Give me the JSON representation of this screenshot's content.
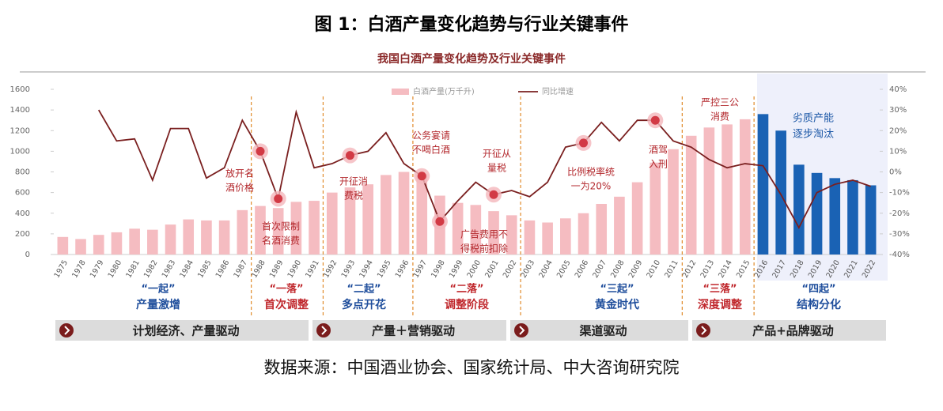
{
  "chart_data": {
    "type": "bar-line",
    "title": "图 1：白酒产量变化趋势与行业关键事件",
    "subtitle": "我国白酒产量变化趋势及行业关键事件",
    "source": "数据来源：中国酒业协会、国家统计局、中大咨询研究院",
    "categories": [
      "1975",
      "1978",
      "1979",
      "1980",
      "1981",
      "1982",
      "1983",
      "1984",
      "1985",
      "1986",
      "1987",
      "1988",
      "1989",
      "1990",
      "1991",
      "1992",
      "1993",
      "1994",
      "1995",
      "1996",
      "1997",
      "1998",
      "1999",
      "2000",
      "2001",
      "2002",
      "2003",
      "2004",
      "2005",
      "2006",
      "2007",
      "2008",
      "2009",
      "2010",
      "2011",
      "2012",
      "2013",
      "2014",
      "2015",
      "2016",
      "2017",
      "2018",
      "2019",
      "2020",
      "2021",
      "2022"
    ],
    "series": [
      {
        "name": "白酒产量(万千升)",
        "type": "bar",
        "color": "#f5bcc1",
        "colors": [
          "#f5bcc1",
          "#f5bcc1",
          "#f5bcc1",
          "#f5bcc1",
          "#f5bcc1",
          "#f5bcc1",
          "#f5bcc1",
          "#f5bcc1",
          "#f5bcc1",
          "#f5bcc1",
          "#f5bcc1",
          "#f5bcc1",
          "#f5bcc1",
          "#f5bcc1",
          "#f5bcc1",
          "#f5bcc1",
          "#f5bcc1",
          "#f5bcc1",
          "#f5bcc1",
          "#f5bcc1",
          "#f5bcc1",
          "#f5bcc1",
          "#f5bcc1",
          "#f5bcc1",
          "#f5bcc1",
          "#f5bcc1",
          "#f5bcc1",
          "#f5bcc1",
          "#f5bcc1",
          "#f5bcc1",
          "#f5bcc1",
          "#f5bcc1",
          "#f5bcc1",
          "#f5bcc1",
          "#f5bcc1",
          "#f5bcc1",
          "#f5bcc1",
          "#f5bcc1",
          "#f5bcc1",
          "#1a62b4",
          "#1a62b4",
          "#1a62b4",
          "#1a62b4",
          "#1a62b4",
          "#1a62b4",
          "#1a62b4"
        ],
        "values": [
          170,
          150,
          190,
          215,
          250,
          240,
          290,
          340,
          330,
          330,
          430,
          470,
          450,
          510,
          520,
          600,
          650,
          680,
          770,
          800,
          780,
          570,
          500,
          480,
          420,
          380,
          330,
          310,
          350,
          400,
          490,
          560,
          700,
          890,
          1020,
          1150,
          1230,
          1260,
          1310,
          1360,
          1200,
          870,
          790,
          740,
          720,
          670
        ]
      },
      {
        "name": "同比增速",
        "type": "line",
        "axis": "y2",
        "color": "#7a1f1f",
        "values": [
          null,
          null,
          30,
          15,
          16,
          -4,
          21,
          21,
          -3,
          2,
          25,
          10,
          -13,
          29,
          2,
          4,
          8,
          10,
          19,
          4,
          -2,
          -24,
          -14,
          -5,
          -11,
          -9,
          -12,
          -5,
          12,
          14,
          24,
          15,
          25,
          25,
          15,
          12,
          6,
          2,
          4,
          3,
          -11,
          -27,
          -10,
          -6,
          -4,
          -7
        ]
      }
    ],
    "ylim": [
      0,
      1600
    ],
    "yticks": [
      0,
      200,
      400,
      600,
      800,
      1000,
      1200,
      1400,
      1600
    ],
    "y2lim": [
      -40,
      40
    ],
    "y2ticks": [
      {
        "value": -40,
        "label": "-40%"
      },
      {
        "value": -30,
        "label": "-30%"
      },
      {
        "value": -20,
        "label": "-20%"
      },
      {
        "value": -10,
        "label": "-10%"
      },
      {
        "value": 0,
        "label": "0%"
      },
      {
        "value": 10,
        "label": "10%"
      },
      {
        "value": 20,
        "label": "20%"
      },
      {
        "value": 30,
        "label": "30%"
      },
      {
        "value": 40,
        "label": "40%"
      }
    ],
    "events": [
      {
        "lines": [
          "放开名",
          "酒价格"
        ]
      },
      {
        "lines": [
          "首次限制",
          "名酒消费"
        ]
      },
      {
        "lines": [
          "开征消",
          "费税"
        ]
      },
      {
        "lines": [
          "公务宴请",
          "不喝白酒"
        ]
      },
      {
        "lines": [
          "广告费用不",
          "得税前扣除"
        ]
      },
      {
        "lines": [
          "开征从",
          "量税"
        ]
      },
      {
        "lines": [
          "比例税率统",
          "一为20%"
        ]
      },
      {
        "lines": [
          "酒驾",
          "入刑"
        ]
      },
      {
        "lines": [
          "严控三公",
          "消费"
        ]
      },
      {
        "lines": [
          "劣质产能",
          "逐步淘汰"
        ]
      }
    ],
    "phases": [
      {
        "name": "“一起”",
        "desc": "产量激增"
      },
      {
        "name": "“一落”",
        "desc": "首次调整"
      },
      {
        "name": "“二起”",
        "desc": "多点开花"
      },
      {
        "name": "“二落”",
        "desc": "调整阶段"
      },
      {
        "name": "“三起”",
        "desc": "黄金时代"
      },
      {
        "name": "“三落”",
        "desc": "深度调整"
      },
      {
        "name": "“四起”",
        "desc": "结构分化"
      }
    ],
    "drivers": [
      "计划经济、产量驱动",
      "产量＋营销驱动",
      "渠道驱动",
      "产品+品牌驱动"
    ]
  }
}
